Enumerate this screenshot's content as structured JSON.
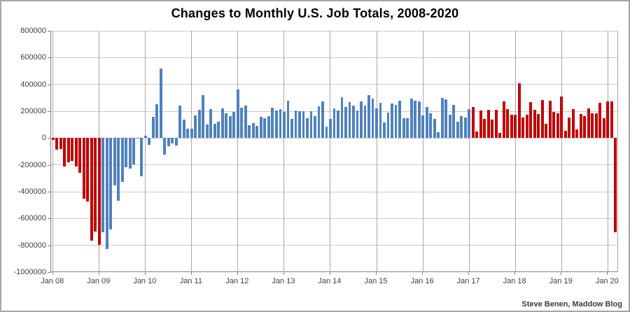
{
  "page": {
    "title": "Changes to Monthly U.S. Job Totals, 2008-2020",
    "credit": "Steve Benen, Maddow Blog"
  },
  "chart_data": {
    "type": "bar",
    "title": "Changes to Monthly U.S. Job Totals, 2008-2020",
    "xlabel": "",
    "ylabel": "",
    "unit": "net change in U.S. jobs per month",
    "ylim": [
      -1000000,
      800000
    ],
    "y_tick_interval": 200000,
    "y_tick_labels": [
      "800000",
      "600000",
      "400000",
      "200000",
      "0",
      "-200000",
      "-400000",
      "-600000",
      "-800000",
      "-1000000"
    ],
    "x_tick_labels": [
      "Jan 08",
      "Jan 09",
      "Jan 10",
      "Jan 11",
      "Jan 12",
      "Jan 13",
      "Jan 14",
      "Jan 15",
      "Jan 16",
      "Jan 17",
      "Jan 18",
      "Jan 19",
      "Jan 20"
    ],
    "x_tick_month_indices": [
      0,
      12,
      24,
      36,
      48,
      60,
      72,
      84,
      96,
      108,
      120,
      132,
      144
    ],
    "grid": true,
    "legend": "none",
    "start_month": "2008-01",
    "end_month": "2020-03",
    "values_scale": 1000,
    "values_by_year": {
      "2008": [
        -15,
        -86,
        -80,
        -214,
        -182,
        -172,
        -210,
        -259,
        -452,
        -474,
        -765,
        -697
      ],
      "2009": [
        -798,
        -701,
        -826,
        -684,
        -354,
        -467,
        -327,
        -216,
        -227,
        -198,
        -6,
        -283
      ],
      "2010": [
        18,
        -50,
        156,
        251,
        516,
        -122,
        -61,
        -42,
        -57,
        241,
        137,
        71
      ],
      "2011": [
        70,
        168,
        212,
        322,
        102,
        217,
        106,
        122,
        221,
        183,
        164,
        196
      ],
      "2012": [
        360,
        226,
        243,
        96,
        110,
        88,
        160,
        150,
        161,
        225,
        203,
        214
      ],
      "2013": [
        197,
        280,
        141,
        203,
        199,
        201,
        149,
        202,
        164,
        237,
        274,
        84
      ],
      "2014": [
        144,
        222,
        203,
        304,
        229,
        267,
        243,
        203,
        271,
        243,
        321,
        292
      ],
      "2015": [
        221,
        265,
        119,
        187,
        260,
        245,
        277,
        150,
        149,
        295,
        280,
        271
      ],
      "2016": [
        168,
        233,
        186,
        144,
        43,
        297,
        291,
        176,
        249,
        124,
        164,
        155
      ],
      "2017": [
        216,
        232,
        50,
        207,
        145,
        210,
        138,
        208,
        38,
        271,
        216,
        175
      ],
      "2018": [
        176,
        407,
        155,
        175,
        268,
        208,
        178,
        286,
        108,
        277,
        196,
        182
      ],
      "2019": [
        312,
        56,
        153,
        216,
        62,
        178,
        166,
        219,
        184,
        185,
        261,
        147
      ],
      "2020": [
        273,
        275,
        -701
      ]
    },
    "colors": {
      "republican_red": "#C00000",
      "democrat_blue": "#4F81BD",
      "gridline_horizontal": "#c9c9c9",
      "gridline_vertical": "#a6a6a6",
      "axis": "#808080"
    },
    "color_spans": [
      {
        "label": "Jan 2008 - Jan 2009",
        "start_index": 0,
        "end_index": 12,
        "color": "#C00000"
      },
      {
        "label": "Feb 2009 - Jan 2017",
        "start_index": 13,
        "end_index": 108,
        "color": "#4F81BD"
      },
      {
        "label": "Feb 2017 - Mar 2020",
        "start_index": 109,
        "end_index": 146,
        "color": "#C00000"
      }
    ]
  }
}
